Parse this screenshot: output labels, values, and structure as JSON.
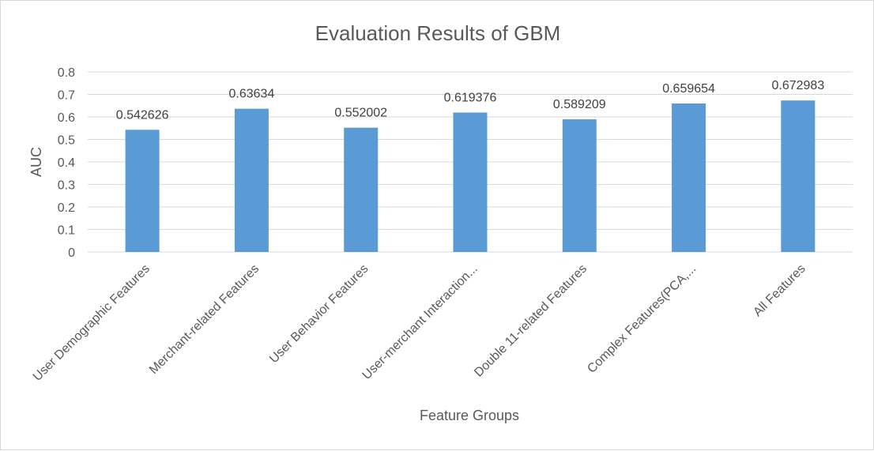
{
  "chart_data": {
    "type": "bar",
    "title": "Evaluation Results of GBM",
    "xlabel": "Feature Groups",
    "ylabel": "AUC",
    "ylim": [
      0,
      0.8
    ],
    "yticks": [
      "0",
      "0.1",
      "0.2",
      "0.3",
      "0.4",
      "0.5",
      "0.6",
      "0.7",
      "0.8"
    ],
    "grid": true,
    "legend": "none",
    "bar_color": "#5B9BD5",
    "categories": [
      "User Demographic Features",
      "Merchant-related Features",
      "User Behavior Features",
      "User-merchant Interaction...",
      "Double 11-related Features",
      "Complex Features(PCA,...",
      "All Features"
    ],
    "values": [
      0.542626,
      0.63634,
      0.552002,
      0.619376,
      0.589209,
      0.659654,
      0.672983
    ],
    "data_labels": [
      "0.542626",
      "0.63634",
      "0.552002",
      "0.619376",
      "0.589209",
      "0.659654",
      "0.672983"
    ]
  }
}
